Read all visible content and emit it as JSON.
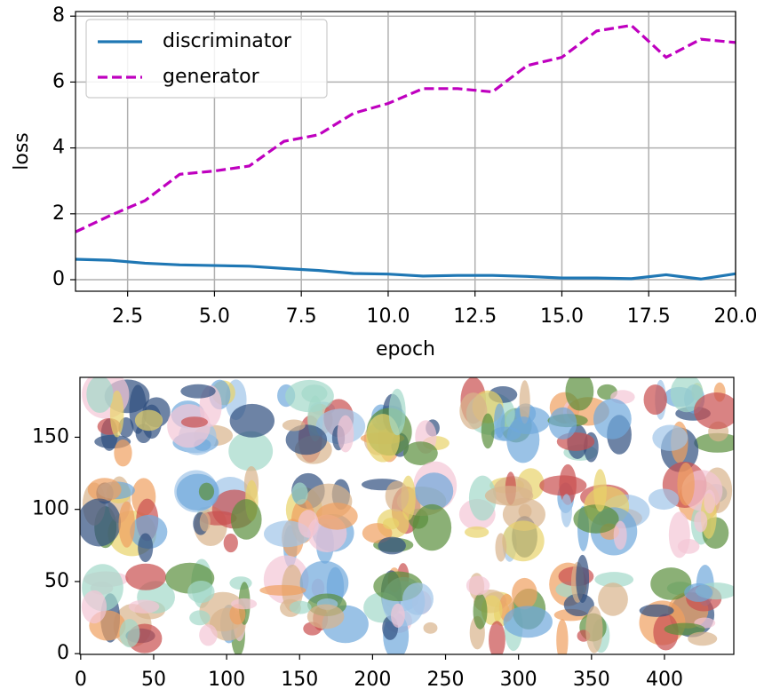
{
  "chart_data": [
    {
      "type": "line",
      "x_label": "epoch",
      "y_label": "loss",
      "x": [
        1,
        2,
        3,
        4,
        5,
        6,
        7,
        8,
        9,
        10,
        11,
        12,
        13,
        14,
        15,
        16,
        17,
        18,
        19,
        20
      ],
      "series": [
        {
          "name": "discriminator",
          "color": "#1f77b4",
          "style": "solid",
          "values": [
            0.62,
            0.59,
            0.5,
            0.45,
            0.43,
            0.41,
            0.34,
            0.28,
            0.19,
            0.17,
            0.11,
            0.13,
            0.13,
            0.1,
            0.05,
            0.05,
            0.03,
            0.15,
            0.02,
            0.18
          ]
        },
        {
          "name": "generator",
          "color": "#bf00bf",
          "style": "dashed",
          "values": [
            1.45,
            1.95,
            2.4,
            3.2,
            3.3,
            3.45,
            4.2,
            4.4,
            5.05,
            5.35,
            5.8,
            5.8,
            5.7,
            6.5,
            6.75,
            7.55,
            7.72,
            6.75,
            7.3,
            7.2
          ]
        }
      ],
      "xlim": [
        1,
        20
      ],
      "xticks": [
        2.5,
        {
          "value": 5,
          "label": "5.0"
        },
        7.5,
        {
          "value": 10,
          "label": "10.0"
        },
        12.5,
        {
          "value": 15,
          "label": "15.0"
        },
        17.5,
        {
          "value": 20,
          "label": "20.0"
        }
      ],
      "ylim": [
        -0.35,
        8.14
      ],
      "yticks": [
        0,
        2,
        4,
        6,
        8
      ],
      "grid": true,
      "legend": "upper-left"
    },
    {
      "type": "image",
      "xlim": [
        -0.5,
        447.5
      ],
      "xticks": [
        0,
        50,
        100,
        150,
        200,
        250,
        300,
        350,
        400
      ],
      "ylim": [
        191.5,
        -0.5
      ],
      "yticks": [
        0,
        50,
        100,
        150
      ]
    }
  ]
}
